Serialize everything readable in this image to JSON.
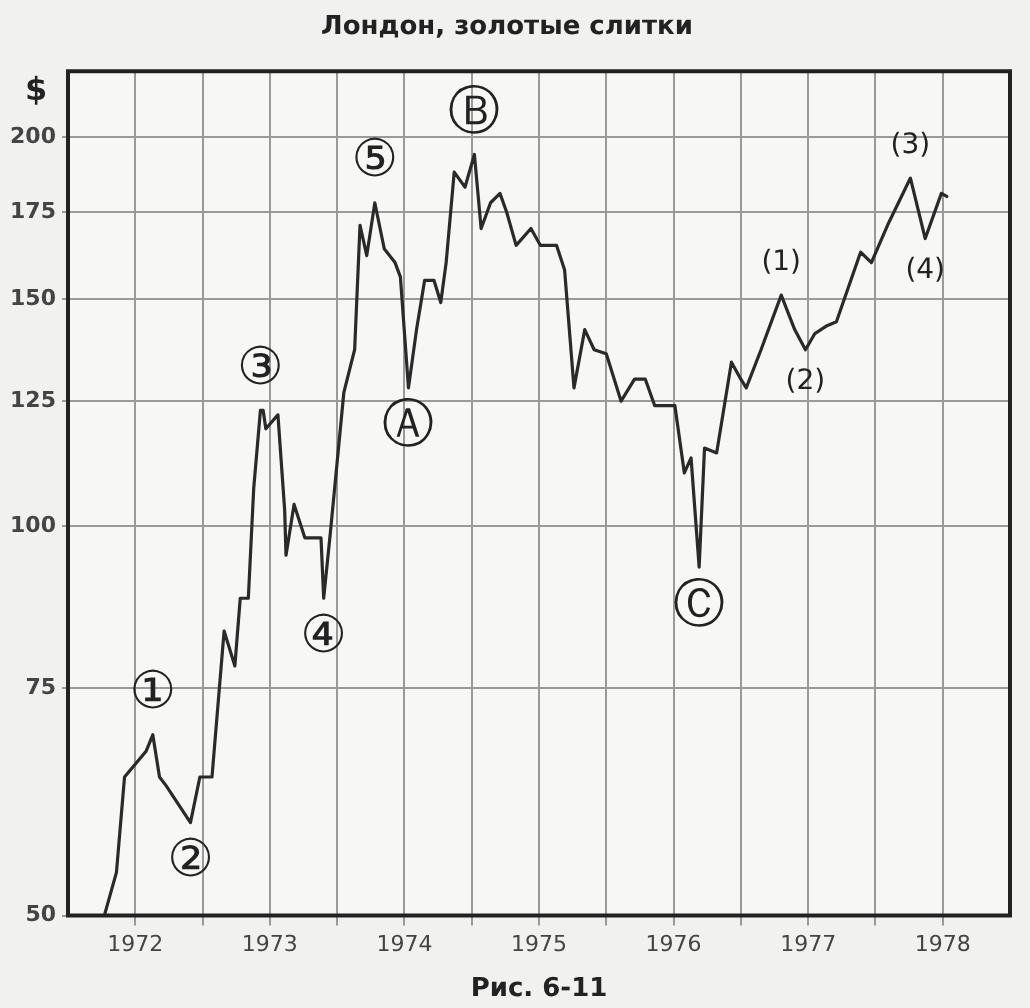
{
  "chart_data": {
    "type": "line",
    "title": "Лондон, золотые слитки",
    "ylabel": "$",
    "x": [
      1972.27,
      1972.36,
      1972.42,
      1972.58,
      1972.63,
      1972.68,
      1972.73,
      1972.91,
      1972.98,
      1973.07,
      1973.16,
      1973.24,
      1973.28,
      1973.34,
      1973.38,
      1973.43,
      1973.45,
      1973.47,
      1973.56,
      1973.61,
      1973.62,
      1973.68,
      1973.76,
      1973.88,
      1973.9,
      1973.95,
      1974.05,
      1974.13,
      1974.17,
      1974.22,
      1974.28,
      1974.35,
      1974.43,
      1974.47,
      1974.53,
      1974.59,
      1974.65,
      1974.72,
      1974.77,
      1974.81,
      1974.87,
      1974.95,
      1975.02,
      1975.07,
      1975.14,
      1975.21,
      1975.26,
      1975.33,
      1975.44,
      1975.51,
      1975.63,
      1975.69,
      1975.76,
      1975.84,
      1975.91,
      1976.0,
      1976.11,
      1976.21,
      1976.29,
      1976.36,
      1976.51,
      1976.58,
      1976.63,
      1976.69,
      1976.73,
      1976.82,
      1976.93,
      1977.0,
      1977.04,
      1977.15,
      1977.3,
      1977.4,
      1977.48,
      1977.55,
      1977.64,
      1977.71,
      1977.89,
      1977.97,
      1978.09,
      1978.26,
      1978.37,
      1978.49,
      1978.53
    ],
    "series": [
      {
        "color": "#2a2a2a",
        "values": [
          50,
          54,
          64,
          67,
          69,
          64,
          63,
          59,
          64,
          64,
          83,
          78,
          88,
          88,
          107,
          123,
          123,
          119,
          122,
          103,
          95,
          104,
          98,
          98,
          88,
          99,
          127,
          137,
          171,
          162,
          178,
          164,
          160,
          156,
          128,
          142,
          155,
          155,
          149,
          160,
          188,
          183,
          194,
          170,
          178,
          181,
          175,
          165,
          170,
          165,
          165,
          158,
          128,
          142,
          137,
          136,
          125,
          130,
          130,
          124,
          124,
          110,
          113,
          93,
          115,
          114,
          134,
          130,
          128,
          137,
          151,
          142,
          137,
          141,
          143,
          144,
          163,
          160,
          171,
          186,
          167,
          181,
          180
        ]
      }
    ],
    "xlim": [
      1972,
      1979
    ],
    "xticks": [
      {
        "value": 1972.5,
        "label": "1972"
      },
      {
        "value": 1973,
        "label": null
      },
      {
        "value": 1973.5,
        "label": "1973"
      },
      {
        "value": 1974,
        "label": null
      },
      {
        "value": 1974.5,
        "label": "1974"
      },
      {
        "value": 1975,
        "label": null
      },
      {
        "value": 1975.5,
        "label": "1975"
      },
      {
        "value": 1976,
        "label": null
      },
      {
        "value": 1976.5,
        "label": "1976"
      },
      {
        "value": 1977,
        "label": null
      },
      {
        "value": 1977.5,
        "label": "1977"
      },
      {
        "value": 1978,
        "label": null
      },
      {
        "value": 1978.5,
        "label": "1978"
      }
    ],
    "ylim": [
      50,
      225
    ],
    "yticks": [
      50,
      75,
      100,
      125,
      150,
      175,
      200
    ],
    "log": "y",
    "grid": true,
    "legend": false,
    "marker": "none",
    "line_style": "solid",
    "annotations": [
      {
        "text": "①",
        "x": 1972.63,
        "y": 69
      },
      {
        "text": "②",
        "x": 1972.91,
        "y": 59
      },
      {
        "text": "③",
        "x": 1973.43,
        "y": 123
      },
      {
        "text": "④",
        "x": 1973.9,
        "y": 88
      },
      {
        "text": "⑤",
        "x": 1974.28,
        "y": 178
      },
      {
        "text": "Ⓐ",
        "x": 1974.53,
        "y": 128
      },
      {
        "text": "Ⓑ",
        "x": 1975.02,
        "y": 194
      },
      {
        "text": "Ⓒ",
        "x": 1976.69,
        "y": 93
      },
      {
        "text": "(1)",
        "x": 1977.3,
        "y": 151
      },
      {
        "text": "(2)",
        "x": 1977.48,
        "y": 137
      },
      {
        "text": "(3)",
        "x": 1978.26,
        "y": 186
      },
      {
        "text": "(4)",
        "x": 1978.37,
        "y": 167
      },
      "Рис. 6-11"
    ]
  }
}
